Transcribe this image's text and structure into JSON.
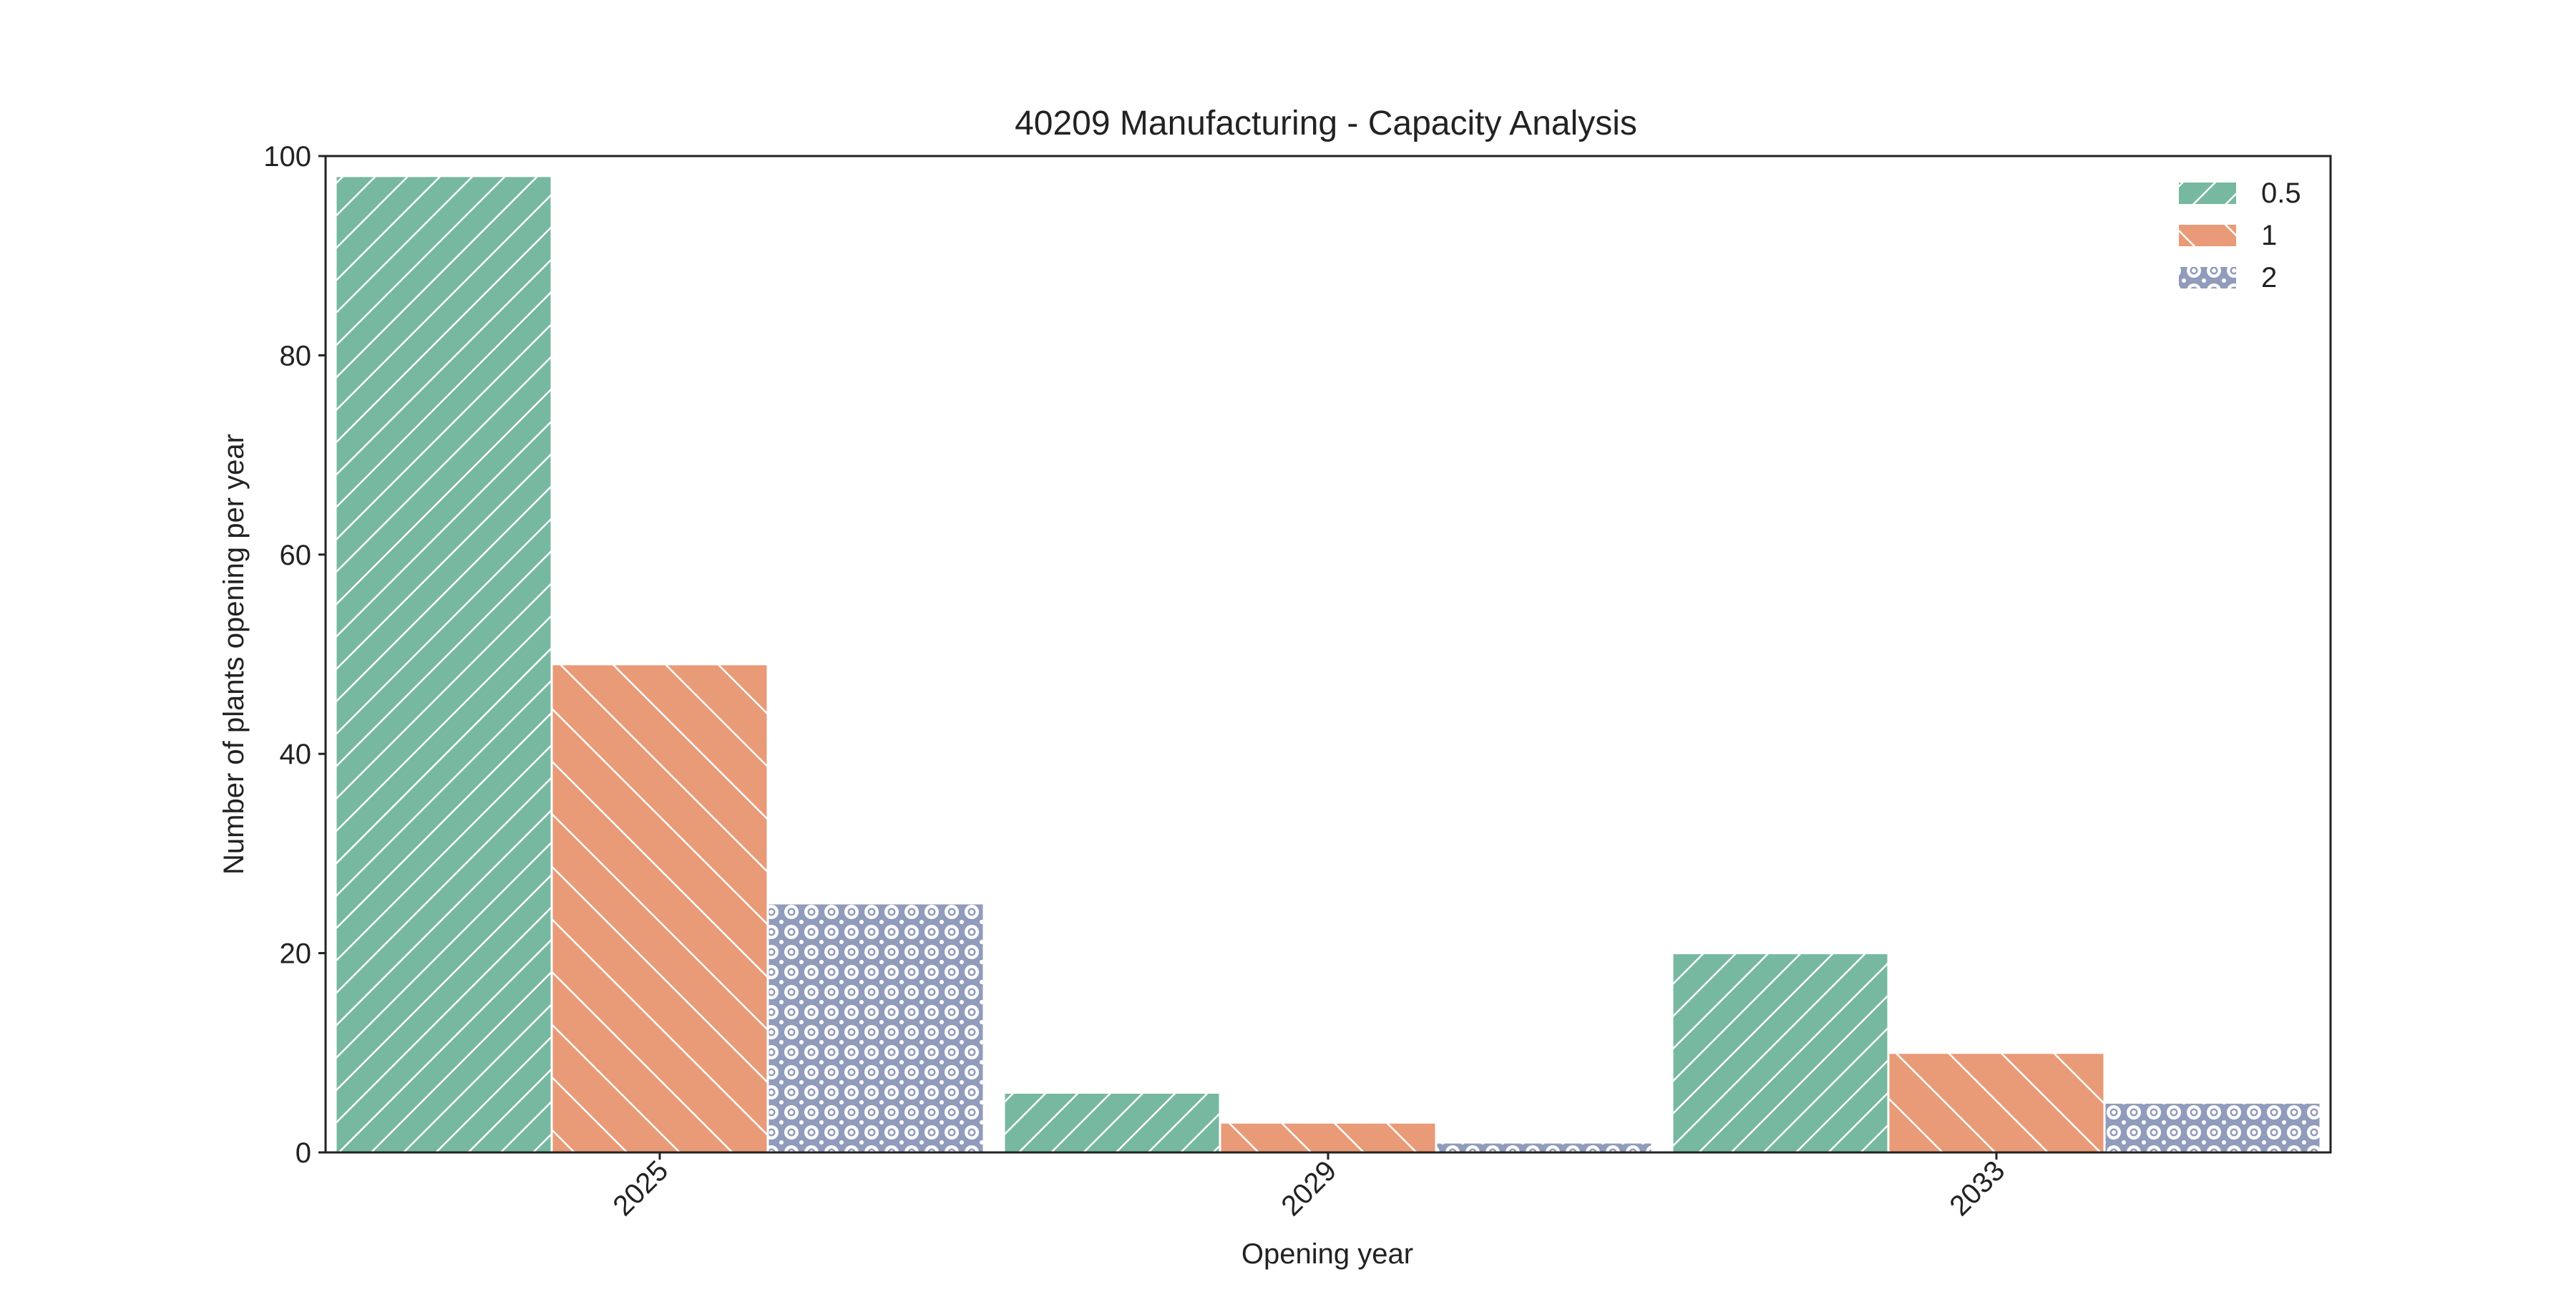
{
  "chart_data": {
    "type": "bar",
    "title": "40209 Manufacturing - Capacity Analysis",
    "xlabel": "Opening year",
    "ylabel": "Number of plants opening per year",
    "categories": [
      "2025",
      "2029",
      "2033"
    ],
    "series": [
      {
        "name": "0.5",
        "values": [
          98,
          6,
          20
        ],
        "color": "#76b8a0",
        "hatch": "forward-diagonal"
      },
      {
        "name": "1",
        "values": [
          49,
          3,
          10
        ],
        "color": "#e99a77",
        "hatch": "back-diagonal"
      },
      {
        "name": "2",
        "values": [
          25,
          1,
          5
        ],
        "color": "#919bbb",
        "hatch": "circles"
      }
    ],
    "ylim": [
      0,
      100
    ],
    "yticks": [
      0,
      20,
      40,
      60,
      80,
      100
    ],
    "grid": false,
    "legend_position": "top-right"
  }
}
